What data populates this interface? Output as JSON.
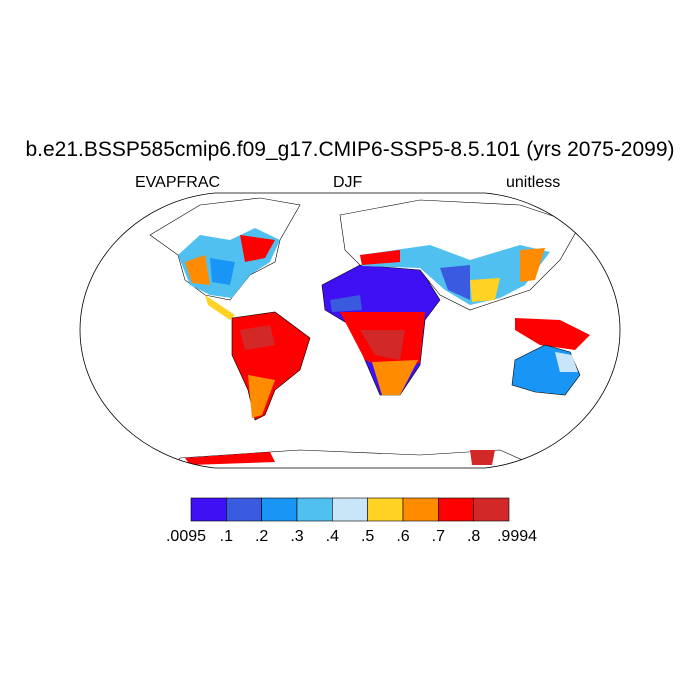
{
  "title": "b.e21.BSSP585cmip6.f09_g17.CMIP6-SSP5-8.5.101 (yrs 2075-2099)",
  "left_string": "EVAPFRAC",
  "center_string": "DJF",
  "right_string": "unitless",
  "projection": "Robinson",
  "colorbar": {
    "labels": [
      ".0095",
      ".1",
      ".2",
      ".3",
      ".4",
      ".5",
      ".6",
      ".7",
      ".8",
      ".9994"
    ],
    "colors": [
      "#4010f5",
      "#3a5ae0",
      "#1996f5",
      "#50c0f0",
      "#c8e6f8",
      "#ffd223",
      "#ff8c00",
      "#ff0000",
      "#d22828"
    ]
  }
}
